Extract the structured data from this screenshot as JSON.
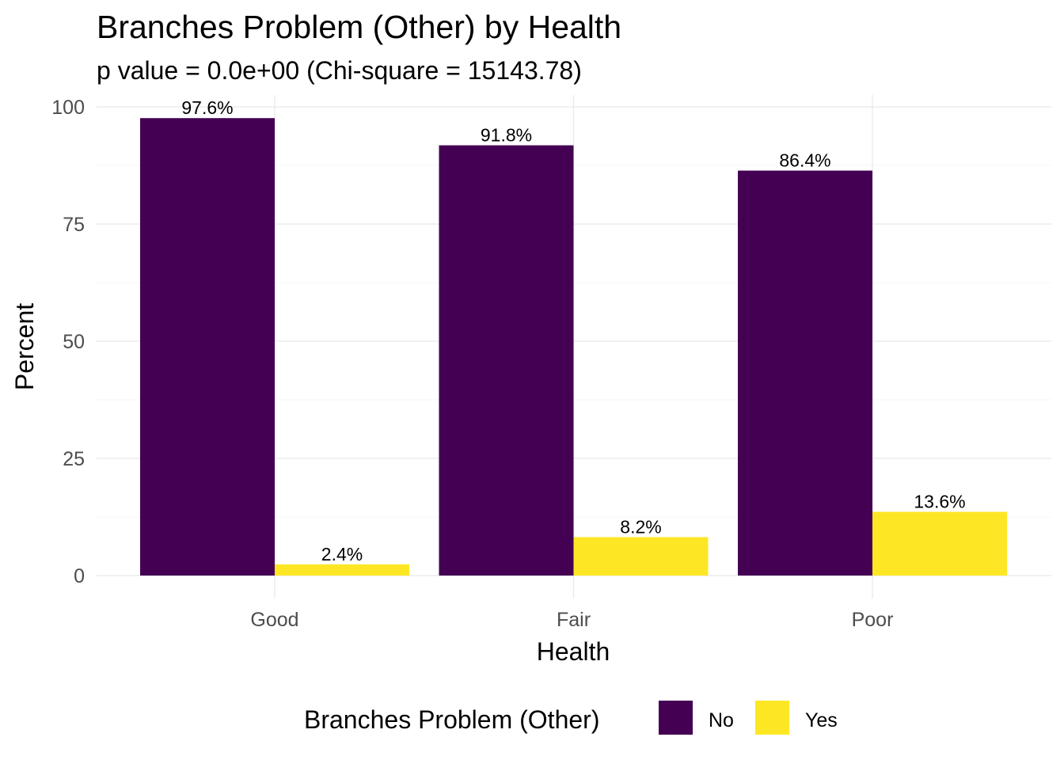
{
  "chart_data": {
    "type": "bar",
    "title": "Branches Problem (Other) by Health",
    "subtitle": "p value = 0.0e+00 (Chi-square = 15143.78)",
    "xlabel": "Health",
    "ylabel": "Percent",
    "categories": [
      "Good",
      "Fair",
      "Poor"
    ],
    "series": [
      {
        "name": "No",
        "color": "#440154",
        "values": [
          97.6,
          91.8,
          86.4
        ],
        "labels": [
          "97.6%",
          "91.8%",
          "86.4%"
        ]
      },
      {
        "name": "Yes",
        "color": "#FDE725",
        "values": [
          2.4,
          8.2,
          13.6
        ],
        "labels": [
          "2.4%",
          "8.2%",
          "13.6%"
        ]
      }
    ],
    "ylim": [
      0,
      102.5
    ],
    "yticks": [
      0,
      25,
      50,
      75,
      100
    ],
    "ytick_labels": [
      "0",
      "25",
      "50",
      "75",
      "100"
    ],
    "grid": true,
    "legend": {
      "title": "Branches Problem (Other)",
      "position": "bottom"
    }
  }
}
